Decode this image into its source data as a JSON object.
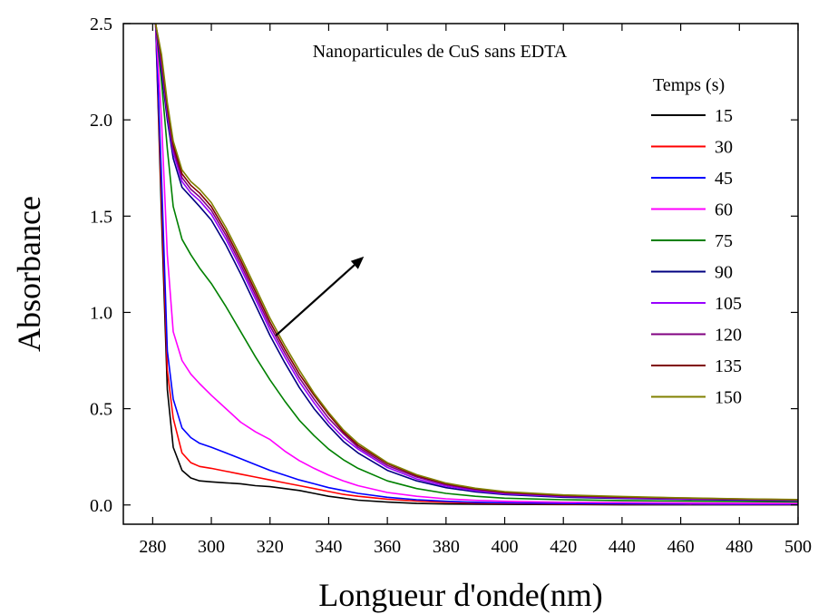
{
  "chart_data": {
    "type": "line",
    "title": "",
    "annotation": "Nanoparticules de CuS sans EDTA",
    "xlabel": "Longueur d'onde(nm)",
    "ylabel": "Absorbance",
    "xlim": [
      270,
      500
    ],
    "ylim": [
      -0.1,
      2.5
    ],
    "xticks": [
      280,
      300,
      320,
      340,
      360,
      380,
      400,
      420,
      440,
      460,
      480,
      500
    ],
    "xtick_labels": [
      "280",
      "300",
      "320",
      "340",
      "360",
      "380",
      "400",
      "420",
      "440",
      "460",
      "480",
      "500"
    ],
    "yticks": [
      0.0,
      0.5,
      1.0,
      1.5,
      2.0,
      2.5
    ],
    "ytick_labels": [
      "0.0",
      "0.5",
      "1.0",
      "1.5",
      "2.0",
      "2.5"
    ],
    "legend_title": "Temps (s)",
    "legend_position": "top-right",
    "grid": false,
    "arrow": {
      "from": [
        322,
        0.88
      ],
      "to": [
        352,
        1.29
      ]
    },
    "x": [
      281,
      283,
      285,
      287,
      290,
      293,
      296,
      300,
      305,
      310,
      315,
      320,
      325,
      330,
      335,
      340,
      345,
      350,
      360,
      370,
      380,
      390,
      400,
      420,
      440,
      460,
      480,
      500
    ],
    "series": [
      {
        "name": "15",
        "color": "#000000",
        "values": [
          2.5,
          1.5,
          0.6,
          0.3,
          0.18,
          0.14,
          0.125,
          0.12,
          0.115,
          0.11,
          0.1,
          0.095,
          0.085,
          0.075,
          0.06,
          0.045,
          0.035,
          0.025,
          0.015,
          0.008,
          0.005,
          0.004,
          0.003,
          0.002,
          0.001,
          0.001,
          0.001,
          0.001
        ]
      },
      {
        "name": "30",
        "color": "#ff0000",
        "values": [
          2.5,
          1.6,
          0.7,
          0.45,
          0.27,
          0.22,
          0.2,
          0.19,
          0.175,
          0.16,
          0.145,
          0.13,
          0.115,
          0.1,
          0.085,
          0.07,
          0.055,
          0.045,
          0.03,
          0.02,
          0.014,
          0.01,
          0.008,
          0.005,
          0.004,
          0.003,
          0.002,
          0.002
        ]
      },
      {
        "name": "45",
        "color": "#0000ff",
        "values": [
          2.5,
          1.7,
          0.8,
          0.55,
          0.4,
          0.35,
          0.32,
          0.3,
          0.27,
          0.24,
          0.21,
          0.18,
          0.155,
          0.13,
          0.11,
          0.09,
          0.075,
          0.06,
          0.04,
          0.027,
          0.019,
          0.014,
          0.011,
          0.008,
          0.006,
          0.005,
          0.004,
          0.004
        ]
      },
      {
        "name": "60",
        "color": "#ff00ff",
        "values": [
          2.5,
          2.0,
          1.3,
          0.9,
          0.75,
          0.68,
          0.63,
          0.57,
          0.5,
          0.43,
          0.38,
          0.34,
          0.28,
          0.23,
          0.19,
          0.155,
          0.125,
          0.1,
          0.065,
          0.045,
          0.032,
          0.024,
          0.019,
          0.014,
          0.012,
          0.01,
          0.009,
          0.008
        ]
      },
      {
        "name": "75",
        "color": "#008000",
        "values": [
          2.5,
          2.2,
          1.85,
          1.55,
          1.38,
          1.3,
          1.23,
          1.15,
          1.03,
          0.9,
          0.77,
          0.65,
          0.54,
          0.44,
          0.36,
          0.29,
          0.235,
          0.19,
          0.125,
          0.085,
          0.06,
          0.045,
          0.035,
          0.027,
          0.023,
          0.02,
          0.018,
          0.016
        ]
      },
      {
        "name": "90",
        "color": "#000080",
        "values": [
          2.5,
          2.25,
          2.0,
          1.8,
          1.65,
          1.6,
          1.55,
          1.48,
          1.35,
          1.2,
          1.04,
          0.88,
          0.74,
          0.61,
          0.5,
          0.41,
          0.33,
          0.27,
          0.18,
          0.125,
          0.09,
          0.068,
          0.054,
          0.04,
          0.034,
          0.029,
          0.025,
          0.022
        ]
      },
      {
        "name": "105",
        "color": "#9900ff",
        "values": [
          2.5,
          2.28,
          2.03,
          1.83,
          1.68,
          1.62,
          1.58,
          1.51,
          1.38,
          1.23,
          1.07,
          0.91,
          0.77,
          0.64,
          0.53,
          0.43,
          0.35,
          0.29,
          0.195,
          0.135,
          0.098,
          0.074,
          0.058,
          0.044,
          0.037,
          0.031,
          0.027,
          0.024
        ]
      },
      {
        "name": "120",
        "color": "#800080",
        "values": [
          2.5,
          2.3,
          2.05,
          1.85,
          1.7,
          1.64,
          1.6,
          1.53,
          1.4,
          1.25,
          1.09,
          0.93,
          0.79,
          0.66,
          0.55,
          0.45,
          0.37,
          0.3,
          0.205,
          0.145,
          0.105,
          0.08,
          0.063,
          0.047,
          0.04,
          0.034,
          0.03,
          0.026
        ]
      },
      {
        "name": "135",
        "color": "#800000",
        "values": [
          2.5,
          2.32,
          2.07,
          1.87,
          1.72,
          1.66,
          1.62,
          1.55,
          1.42,
          1.27,
          1.11,
          0.95,
          0.81,
          0.68,
          0.57,
          0.47,
          0.38,
          0.31,
          0.215,
          0.152,
          0.11,
          0.084,
          0.066,
          0.05,
          0.042,
          0.036,
          0.031,
          0.027
        ]
      },
      {
        "name": "150",
        "color": "#808000",
        "values": [
          2.5,
          2.34,
          2.09,
          1.89,
          1.74,
          1.68,
          1.64,
          1.57,
          1.44,
          1.29,
          1.13,
          0.97,
          0.83,
          0.7,
          0.58,
          0.48,
          0.39,
          0.32,
          0.22,
          0.157,
          0.114,
          0.087,
          0.069,
          0.052,
          0.044,
          0.037,
          0.032,
          0.028
        ]
      }
    ]
  }
}
